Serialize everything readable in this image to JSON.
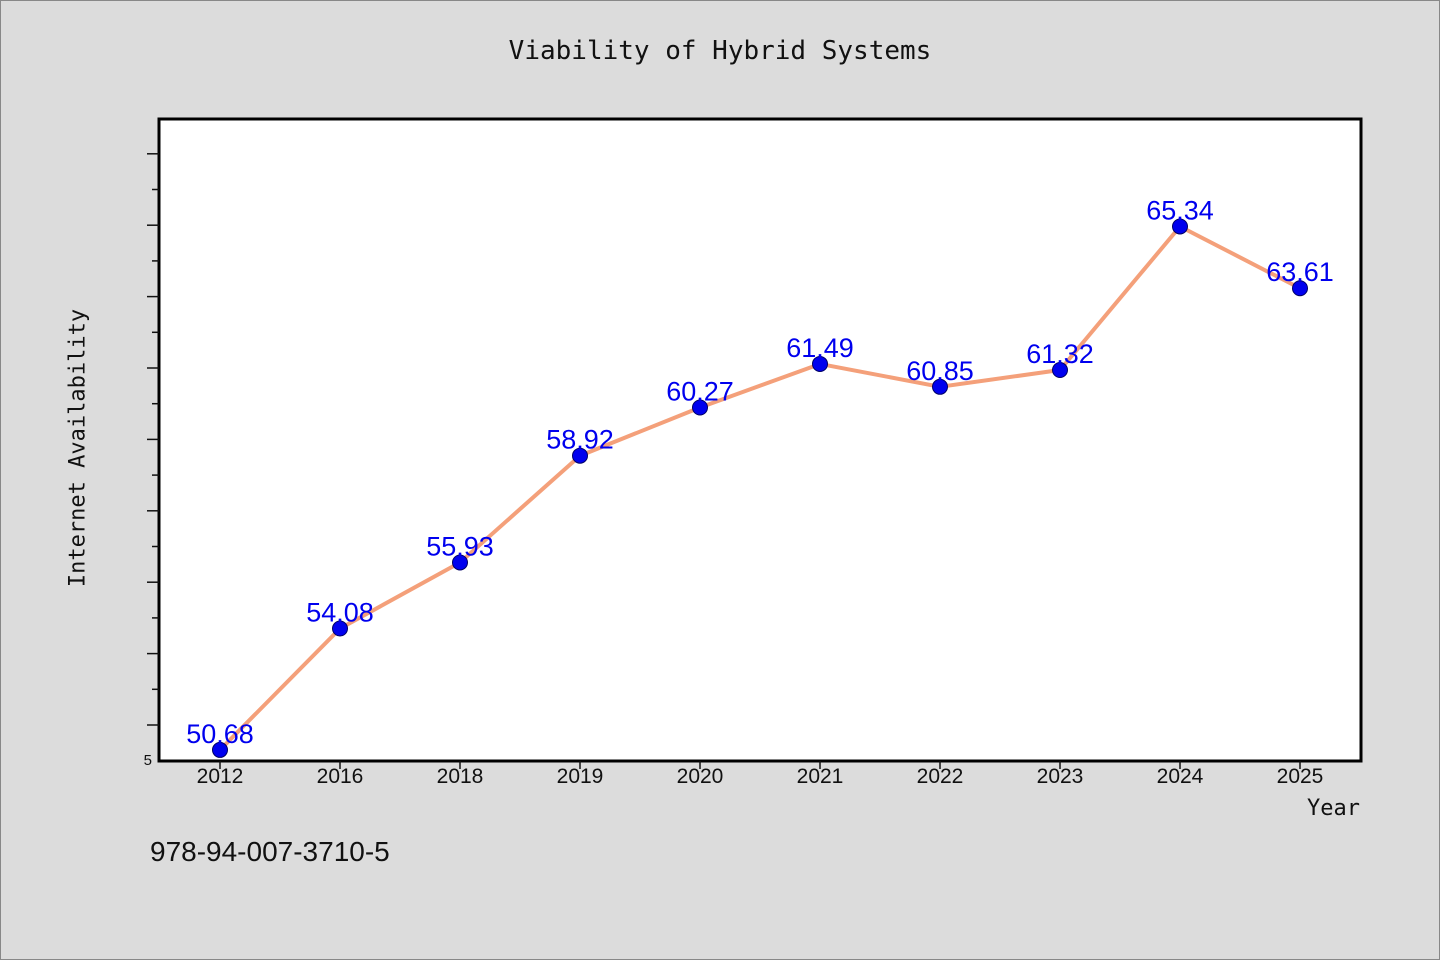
{
  "chart_data": {
    "type": "line",
    "title": "Viability of Hybrid Systems",
    "xlabel": "Year",
    "ylabel": "Internet Availability",
    "categories": [
      "2012",
      "2016",
      "2018",
      "2019",
      "2020",
      "2021",
      "2022",
      "2023",
      "2024",
      "2025"
    ],
    "series": [
      {
        "values": [
          50.68,
          54.08,
          55.93,
          58.92,
          60.27,
          61.49,
          60.85,
          61.32,
          65.34,
          63.61
        ]
      }
    ],
    "data_labels": [
      "50.68",
      "54.08",
      "55.93",
      "58.92",
      "60.27",
      "61.49",
      "60.85",
      "61.32",
      "65.34",
      "63.61"
    ],
    "ylim": [
      50.37,
      68.35
    ],
    "y_tick_labels": [
      "5"
    ],
    "grid": false,
    "colors": {
      "line": "#f4a07a",
      "marker": "#0000ee",
      "label": "#0000ee",
      "background": "#dcdcdc",
      "plot_background": "#ffffff"
    }
  },
  "footer": {
    "code": "978-94-007-3710-5"
  }
}
